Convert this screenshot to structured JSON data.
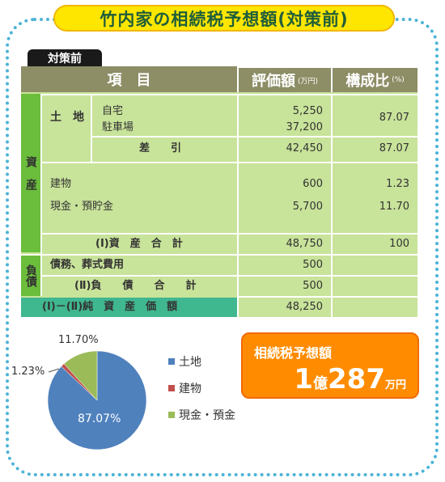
{
  "title": "竹内家の相続税予想額(対策前)",
  "tag": "対策前",
  "header": {
    "item": "項　目",
    "value": "評価額",
    "value_unit": "(万円)",
    "ratio": "構成比",
    "ratio_unit": "(%)"
  },
  "assets": {
    "side_label": "資　産",
    "land_label": "土　地",
    "land_items": [
      "自宅",
      "駐車場"
    ],
    "land_values": [
      "5,250",
      "37,200"
    ],
    "land_ratio": "87.07",
    "subtotal_label": "差　　引",
    "subtotal_value": "42,450",
    "subtotal_ratio": "87.07",
    "others": [
      {
        "label": "建物",
        "value": "600",
        "ratio": "1.23"
      },
      {
        "label": "現金・預貯金",
        "value": "5,700",
        "ratio": "11.70"
      }
    ],
    "total_label": "(Ⅰ)資　産　合　計",
    "total_value": "48,750",
    "total_ratio": "100"
  },
  "liabilities": {
    "side_label": "負債",
    "item_label": "債務、葬式費用",
    "item_value": "500",
    "total_label": "(Ⅱ)負　　債　　合　　計",
    "total_value": "500"
  },
  "net": {
    "label": "(Ⅰ)－(Ⅱ)純　資　産　価　額",
    "value": "48,250"
  },
  "result": {
    "label": "相続税予想額",
    "amount_num": "1",
    "amount_oku": "億",
    "amount_num2": "287",
    "amount_unit": "万円"
  },
  "chart_data": {
    "type": "pie",
    "labels": [
      "土地",
      "建物",
      "現金・預金"
    ],
    "values": [
      87.07,
      1.23,
      11.7
    ],
    "value_labels": [
      "87.07%",
      "1.23%",
      "11.70%"
    ],
    "colors": [
      "#4f81bd",
      "#c0504d",
      "#9bbb59"
    ],
    "legend_position": "right"
  }
}
